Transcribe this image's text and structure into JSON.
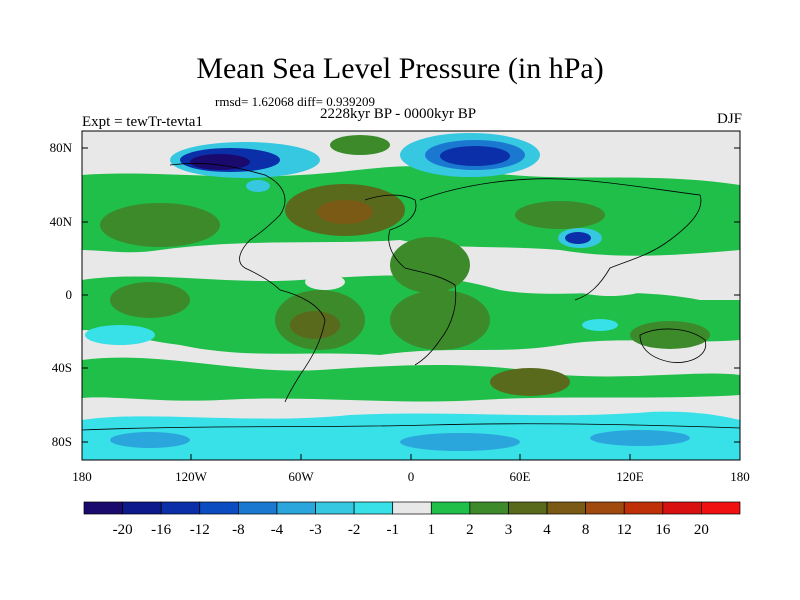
{
  "title": "Mean Sea Level Pressure (in hPa)",
  "stats": "rmsd= 1.62068 diff= 0.939209",
  "period": "2228kyr BP - 0000kyr BP",
  "experiment": "Expt = tewTr-tevta1",
  "season": "DJF",
  "map": {
    "lat_ticks": [
      "80N",
      "40N",
      "0",
      "40S",
      "80S"
    ],
    "lon_ticks": [
      "180",
      "120W",
      "60W",
      "0",
      "60E",
      "120E",
      "180"
    ]
  },
  "colorbar": {
    "labels": [
      "-20",
      "-16",
      "-12",
      "-8",
      "-4",
      "-3",
      "-2",
      "-1",
      "1",
      "2",
      "3",
      "4",
      "8",
      "12",
      "16",
      "20"
    ],
    "colors": [
      "#1a0a6e",
      "#0d1a8c",
      "#0b2fa8",
      "#0b4cc0",
      "#1a78d0",
      "#2aa6dc",
      "#35c8e0",
      "#38e0e8",
      "#e8e8e8",
      "#1fbf4a",
      "#3d8a2a",
      "#5a6a1c",
      "#7a5a14",
      "#a04a10",
      "#c03008",
      "#d81010",
      "#f01010"
    ]
  }
}
